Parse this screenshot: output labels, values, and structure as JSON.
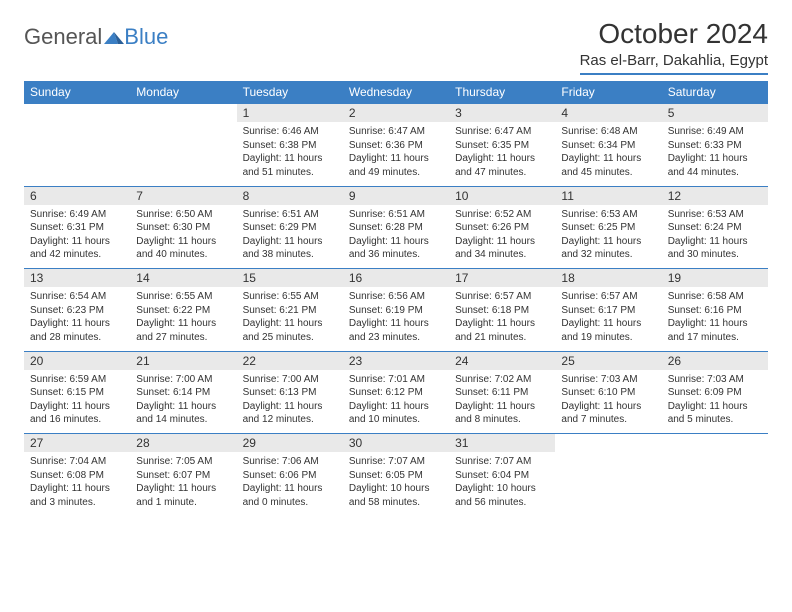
{
  "brand": {
    "part1": "General",
    "part2": "Blue"
  },
  "colors": {
    "accent": "#3b7fc4",
    "header_text": "#ffffff",
    "daynum_bg": "#e9e9e9",
    "text": "#333333",
    "background": "#ffffff"
  },
  "title": "October 2024",
  "location": "Ras el-Barr, Dakahlia, Egypt",
  "dow": [
    "Sunday",
    "Monday",
    "Tuesday",
    "Wednesday",
    "Thursday",
    "Friday",
    "Saturday"
  ],
  "weeks": [
    {
      "nums": [
        "",
        "",
        "1",
        "2",
        "3",
        "4",
        "5"
      ],
      "cells": [
        null,
        null,
        {
          "sunrise": "Sunrise: 6:46 AM",
          "sunset": "Sunset: 6:38 PM",
          "day1": "Daylight: 11 hours",
          "day2": "and 51 minutes."
        },
        {
          "sunrise": "Sunrise: 6:47 AM",
          "sunset": "Sunset: 6:36 PM",
          "day1": "Daylight: 11 hours",
          "day2": "and 49 minutes."
        },
        {
          "sunrise": "Sunrise: 6:47 AM",
          "sunset": "Sunset: 6:35 PM",
          "day1": "Daylight: 11 hours",
          "day2": "and 47 minutes."
        },
        {
          "sunrise": "Sunrise: 6:48 AM",
          "sunset": "Sunset: 6:34 PM",
          "day1": "Daylight: 11 hours",
          "day2": "and 45 minutes."
        },
        {
          "sunrise": "Sunrise: 6:49 AM",
          "sunset": "Sunset: 6:33 PM",
          "day1": "Daylight: 11 hours",
          "day2": "and 44 minutes."
        }
      ]
    },
    {
      "nums": [
        "6",
        "7",
        "8",
        "9",
        "10",
        "11",
        "12"
      ],
      "cells": [
        {
          "sunrise": "Sunrise: 6:49 AM",
          "sunset": "Sunset: 6:31 PM",
          "day1": "Daylight: 11 hours",
          "day2": "and 42 minutes."
        },
        {
          "sunrise": "Sunrise: 6:50 AM",
          "sunset": "Sunset: 6:30 PM",
          "day1": "Daylight: 11 hours",
          "day2": "and 40 minutes."
        },
        {
          "sunrise": "Sunrise: 6:51 AM",
          "sunset": "Sunset: 6:29 PM",
          "day1": "Daylight: 11 hours",
          "day2": "and 38 minutes."
        },
        {
          "sunrise": "Sunrise: 6:51 AM",
          "sunset": "Sunset: 6:28 PM",
          "day1": "Daylight: 11 hours",
          "day2": "and 36 minutes."
        },
        {
          "sunrise": "Sunrise: 6:52 AM",
          "sunset": "Sunset: 6:26 PM",
          "day1": "Daylight: 11 hours",
          "day2": "and 34 minutes."
        },
        {
          "sunrise": "Sunrise: 6:53 AM",
          "sunset": "Sunset: 6:25 PM",
          "day1": "Daylight: 11 hours",
          "day2": "and 32 minutes."
        },
        {
          "sunrise": "Sunrise: 6:53 AM",
          "sunset": "Sunset: 6:24 PM",
          "day1": "Daylight: 11 hours",
          "day2": "and 30 minutes."
        }
      ]
    },
    {
      "nums": [
        "13",
        "14",
        "15",
        "16",
        "17",
        "18",
        "19"
      ],
      "cells": [
        {
          "sunrise": "Sunrise: 6:54 AM",
          "sunset": "Sunset: 6:23 PM",
          "day1": "Daylight: 11 hours",
          "day2": "and 28 minutes."
        },
        {
          "sunrise": "Sunrise: 6:55 AM",
          "sunset": "Sunset: 6:22 PM",
          "day1": "Daylight: 11 hours",
          "day2": "and 27 minutes."
        },
        {
          "sunrise": "Sunrise: 6:55 AM",
          "sunset": "Sunset: 6:21 PM",
          "day1": "Daylight: 11 hours",
          "day2": "and 25 minutes."
        },
        {
          "sunrise": "Sunrise: 6:56 AM",
          "sunset": "Sunset: 6:19 PM",
          "day1": "Daylight: 11 hours",
          "day2": "and 23 minutes."
        },
        {
          "sunrise": "Sunrise: 6:57 AM",
          "sunset": "Sunset: 6:18 PM",
          "day1": "Daylight: 11 hours",
          "day2": "and 21 minutes."
        },
        {
          "sunrise": "Sunrise: 6:57 AM",
          "sunset": "Sunset: 6:17 PM",
          "day1": "Daylight: 11 hours",
          "day2": "and 19 minutes."
        },
        {
          "sunrise": "Sunrise: 6:58 AM",
          "sunset": "Sunset: 6:16 PM",
          "day1": "Daylight: 11 hours",
          "day2": "and 17 minutes."
        }
      ]
    },
    {
      "nums": [
        "20",
        "21",
        "22",
        "23",
        "24",
        "25",
        "26"
      ],
      "cells": [
        {
          "sunrise": "Sunrise: 6:59 AM",
          "sunset": "Sunset: 6:15 PM",
          "day1": "Daylight: 11 hours",
          "day2": "and 16 minutes."
        },
        {
          "sunrise": "Sunrise: 7:00 AM",
          "sunset": "Sunset: 6:14 PM",
          "day1": "Daylight: 11 hours",
          "day2": "and 14 minutes."
        },
        {
          "sunrise": "Sunrise: 7:00 AM",
          "sunset": "Sunset: 6:13 PM",
          "day1": "Daylight: 11 hours",
          "day2": "and 12 minutes."
        },
        {
          "sunrise": "Sunrise: 7:01 AM",
          "sunset": "Sunset: 6:12 PM",
          "day1": "Daylight: 11 hours",
          "day2": "and 10 minutes."
        },
        {
          "sunrise": "Sunrise: 7:02 AM",
          "sunset": "Sunset: 6:11 PM",
          "day1": "Daylight: 11 hours",
          "day2": "and 8 minutes."
        },
        {
          "sunrise": "Sunrise: 7:03 AM",
          "sunset": "Sunset: 6:10 PM",
          "day1": "Daylight: 11 hours",
          "day2": "and 7 minutes."
        },
        {
          "sunrise": "Sunrise: 7:03 AM",
          "sunset": "Sunset: 6:09 PM",
          "day1": "Daylight: 11 hours",
          "day2": "and 5 minutes."
        }
      ]
    },
    {
      "nums": [
        "27",
        "28",
        "29",
        "30",
        "31",
        "",
        ""
      ],
      "cells": [
        {
          "sunrise": "Sunrise: 7:04 AM",
          "sunset": "Sunset: 6:08 PM",
          "day1": "Daylight: 11 hours",
          "day2": "and 3 minutes."
        },
        {
          "sunrise": "Sunrise: 7:05 AM",
          "sunset": "Sunset: 6:07 PM",
          "day1": "Daylight: 11 hours",
          "day2": "and 1 minute."
        },
        {
          "sunrise": "Sunrise: 7:06 AM",
          "sunset": "Sunset: 6:06 PM",
          "day1": "Daylight: 11 hours",
          "day2": "and 0 minutes."
        },
        {
          "sunrise": "Sunrise: 7:07 AM",
          "sunset": "Sunset: 6:05 PM",
          "day1": "Daylight: 10 hours",
          "day2": "and 58 minutes."
        },
        {
          "sunrise": "Sunrise: 7:07 AM",
          "sunset": "Sunset: 6:04 PM",
          "day1": "Daylight: 10 hours",
          "day2": "and 56 minutes."
        },
        null,
        null
      ]
    }
  ]
}
